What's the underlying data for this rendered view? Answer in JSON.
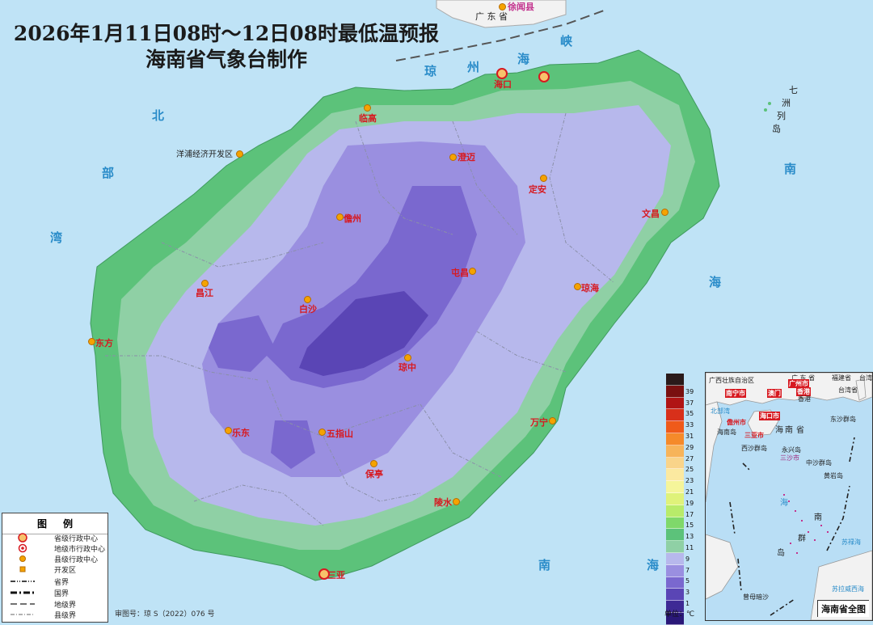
{
  "title": {
    "line1": "2026年1月11日08时～12日08时最低温预报",
    "line2": "海南省气象台制作"
  },
  "top_label": "广 东 省",
  "top_county": "徐闻县",
  "cities": {
    "haikou": "海口",
    "lingao": "临高",
    "yangpu": "洋浦经济开发区",
    "chengmai": "澄迈",
    "dingan": "定安",
    "wenchang": "文昌",
    "danzhou": "儋州",
    "tunchang": "屯昌",
    "qionghai": "琼海",
    "changjiang": "昌江",
    "baisha": "白沙",
    "dongfang": "东方",
    "qiongzhong": "琼中",
    "ledong": "乐东",
    "wuzhishan": "五指山",
    "wanning": "万宁",
    "baoting": "保亭",
    "lingshui": "陵水",
    "sanya": "三亚"
  },
  "seas": {
    "bei": "北",
    "bu": "部",
    "wan": "湾",
    "qiong": "琼",
    "zhou": "州",
    "hai_strait": "海",
    "xia": "峡",
    "nan_e": "南",
    "hai_e": "海",
    "nan_s": "南",
    "hai_s": "海",
    "qizhou": [
      "七",
      "洲",
      "列",
      "岛"
    ]
  },
  "legend": {
    "header": "图例",
    "items": [
      "省级行政中心",
      "地级市行政中心",
      "县级行政中心",
      "开发区",
      "省界",
      "国界",
      "地级界",
      "县级界"
    ]
  },
  "review_number": "审图号：琼 S（2022）076 号",
  "colorbar": {
    "labels": [
      "39",
      "37",
      "35",
      "33",
      "31",
      "29",
      "27",
      "25",
      "23",
      "21",
      "19",
      "17",
      "15",
      "13",
      "11",
      "9",
      "7",
      "5",
      "3",
      "1"
    ],
    "colors": [
      "#2a1a1a",
      "#7a1010",
      "#b01414",
      "#d8301a",
      "#ef5a1a",
      "#f58a2a",
      "#f7b45a",
      "#f9d48a",
      "#fbe9a0",
      "#f5f59a",
      "#dff27a",
      "#b8eb6a",
      "#7fd86a",
      "#5cc27a",
      "#8fd0a5",
      "#b7b8ec",
      "#9a8fe0",
      "#7a68cf",
      "#5a45b5",
      "#3e2a95",
      "#2a1878"
    ],
    "unit": "单位：℃"
  },
  "inset": {
    "title": "海南省全图",
    "labels": {
      "guangxi": "广西壮族自治区",
      "guangdong": "广 东 省",
      "fujian": "福建省",
      "taiwan": "台湾",
      "taiwan_province": "台湾省",
      "nanning": "南宁市",
      "guangzhou": "广州市",
      "macau": "澳门",
      "hongkong": "香港",
      "hongkong2": "香港",
      "beibu": "北部湾",
      "haikou_city": "海口市",
      "danzhou_city": "儋州市",
      "sanya_city": "三亚市",
      "hainan_island": "海南岛",
      "nan": "南",
      "hai": "海",
      "sheng": "省",
      "dongsha": "东沙群岛",
      "xisha": "西沙群岛",
      "yongxing": "永兴岛",
      "sansha": "三沙市",
      "zhongsha": "中沙群岛",
      "huangyan": "黄岩岛",
      "hai2": "海",
      "nan2": "南",
      "qun": "群",
      "dao": "岛",
      "sulu": "苏禄海",
      "zengmu": "曾母暗沙",
      "sulawesi": "苏拉威西海"
    }
  },
  "colors": {
    "ocean": "#bfe3f6",
    "coast_green": "#5cc27a",
    "interior_light": "#b7b8ec",
    "interior_mid": "#9a8fe0",
    "interior_deep": "#6a52c2"
  }
}
